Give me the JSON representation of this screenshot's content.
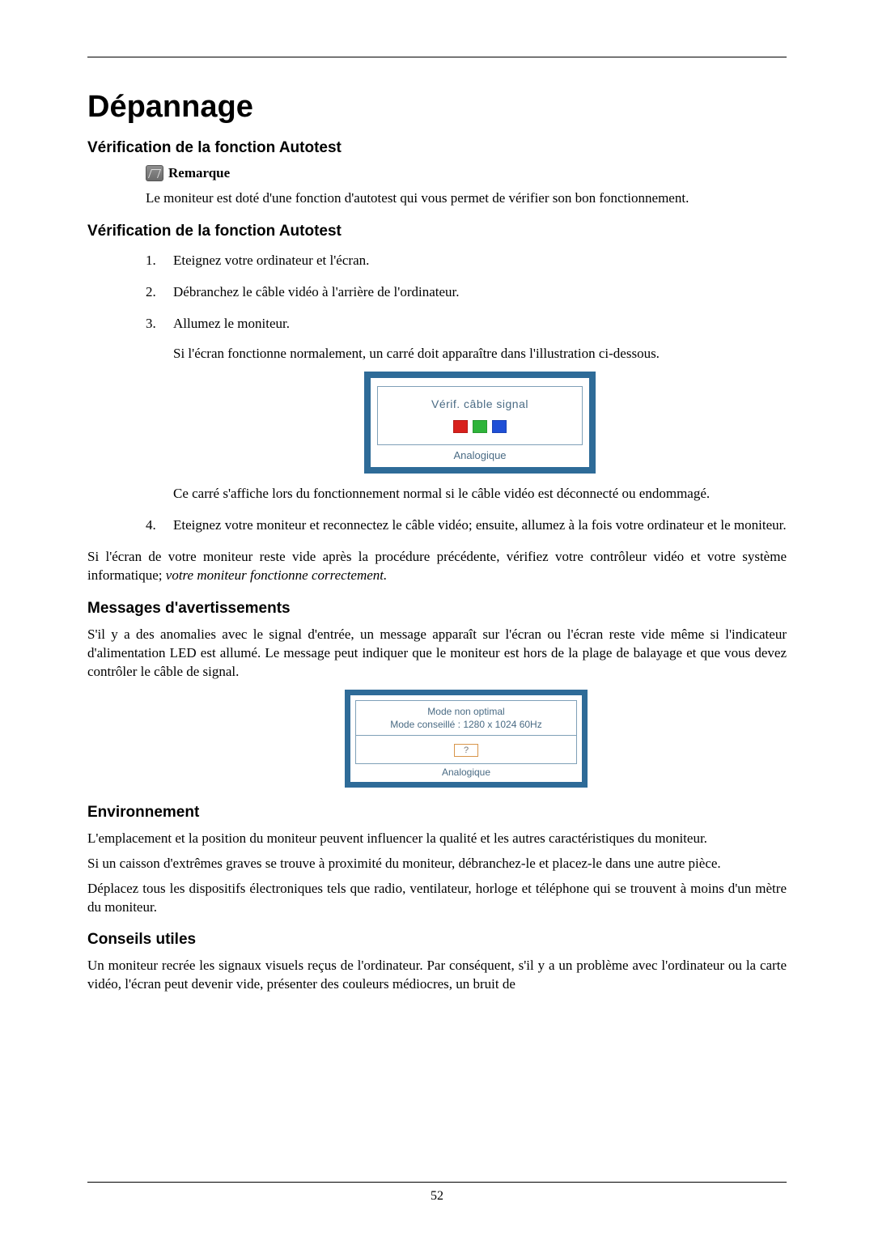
{
  "page": {
    "title": "Dépannage",
    "number": "52"
  },
  "sections": {
    "autotest1": {
      "heading": "Vérification de la fonction Autotest",
      "note_label": "Remarque",
      "note_text": "Le moniteur est doté d'une fonction d'autotest qui vous permet de vérifier son bon fonctionnement."
    },
    "autotest2": {
      "heading": "Vérification de la fonction Autotest",
      "steps": [
        "Eteignez votre ordinateur et l'écran.",
        "Débranchez le câble vidéo à l'arrière de l'ordinateur.",
        "Allumez le moniteur."
      ],
      "step3_sub": "Si l'écran fonctionne normalement, un carré doit apparaître dans l'illustration ci-dessous.",
      "panel1": {
        "title": "Vérif. câble signal",
        "footer": "Analogique",
        "sq_colors": [
          "#d8201c",
          "#2eb43a",
          "#1f4fd6"
        ],
        "border_color": "#2e6b98",
        "text_color": "#4a6b84",
        "inner_border": "#7fa0b8",
        "bg": "#ffffff"
      },
      "after_panel": "Ce carré s'affiche lors du fonctionnement normal si le câble vidéo est déconnecté ou endommagé.",
      "step4": "Eteignez votre moniteur et reconnectez le câble vidéo; ensuite, allumez à la fois votre ordinateur et le moniteur.",
      "closing_plain": "Si l'écran de votre moniteur reste vide après la procédure précédente, vérifiez votre contrôleur vidéo et votre système informatique; ",
      "closing_italic": "votre moniteur fonctionne correctement."
    },
    "warnings": {
      "heading": "Messages d'avertissements",
      "text": "S'il y a des anomalies avec le signal d'entrée, un message apparaît sur l'écran ou l'écran reste vide même si l'indicateur d'alimentation LED est allumé. Le message peut indiquer que le moniteur est hors de la plage de balayage et que vous devez contrôler le câble de signal.",
      "panel2": {
        "line1": "Mode non optimal",
        "line2": "Mode conseillé : 1280 x 1024  60Hz",
        "qmark": "?",
        "footer": "Analogique",
        "border_color": "#2e6b98",
        "text_color": "#4a6b84",
        "inner_border": "#7fa0b8",
        "qmark_border": "#d8954a",
        "bg": "#ffffff"
      }
    },
    "env": {
      "heading": "Environnement",
      "p1": "L'emplacement et la position du moniteur peuvent influencer la qualité et les autres caractéristiques du moniteur.",
      "p2": "Si un caisson d'extrêmes graves se trouve à proximité du moniteur, débranchez-le et placez-le dans une autre pièce.",
      "p3": "Déplacez tous les dispositifs électroniques tels que radio, ventilateur, horloge et téléphone qui se trouvent à moins d'un mètre du moniteur."
    },
    "tips": {
      "heading": "Conseils utiles",
      "p1": "Un moniteur recrée les signaux visuels reçus de l'ordinateur. Par conséquent, s'il y a un problème avec l'ordinateur ou la carte vidéo, l'écran peut devenir vide, présenter des couleurs médiocres, un bruit de"
    }
  }
}
